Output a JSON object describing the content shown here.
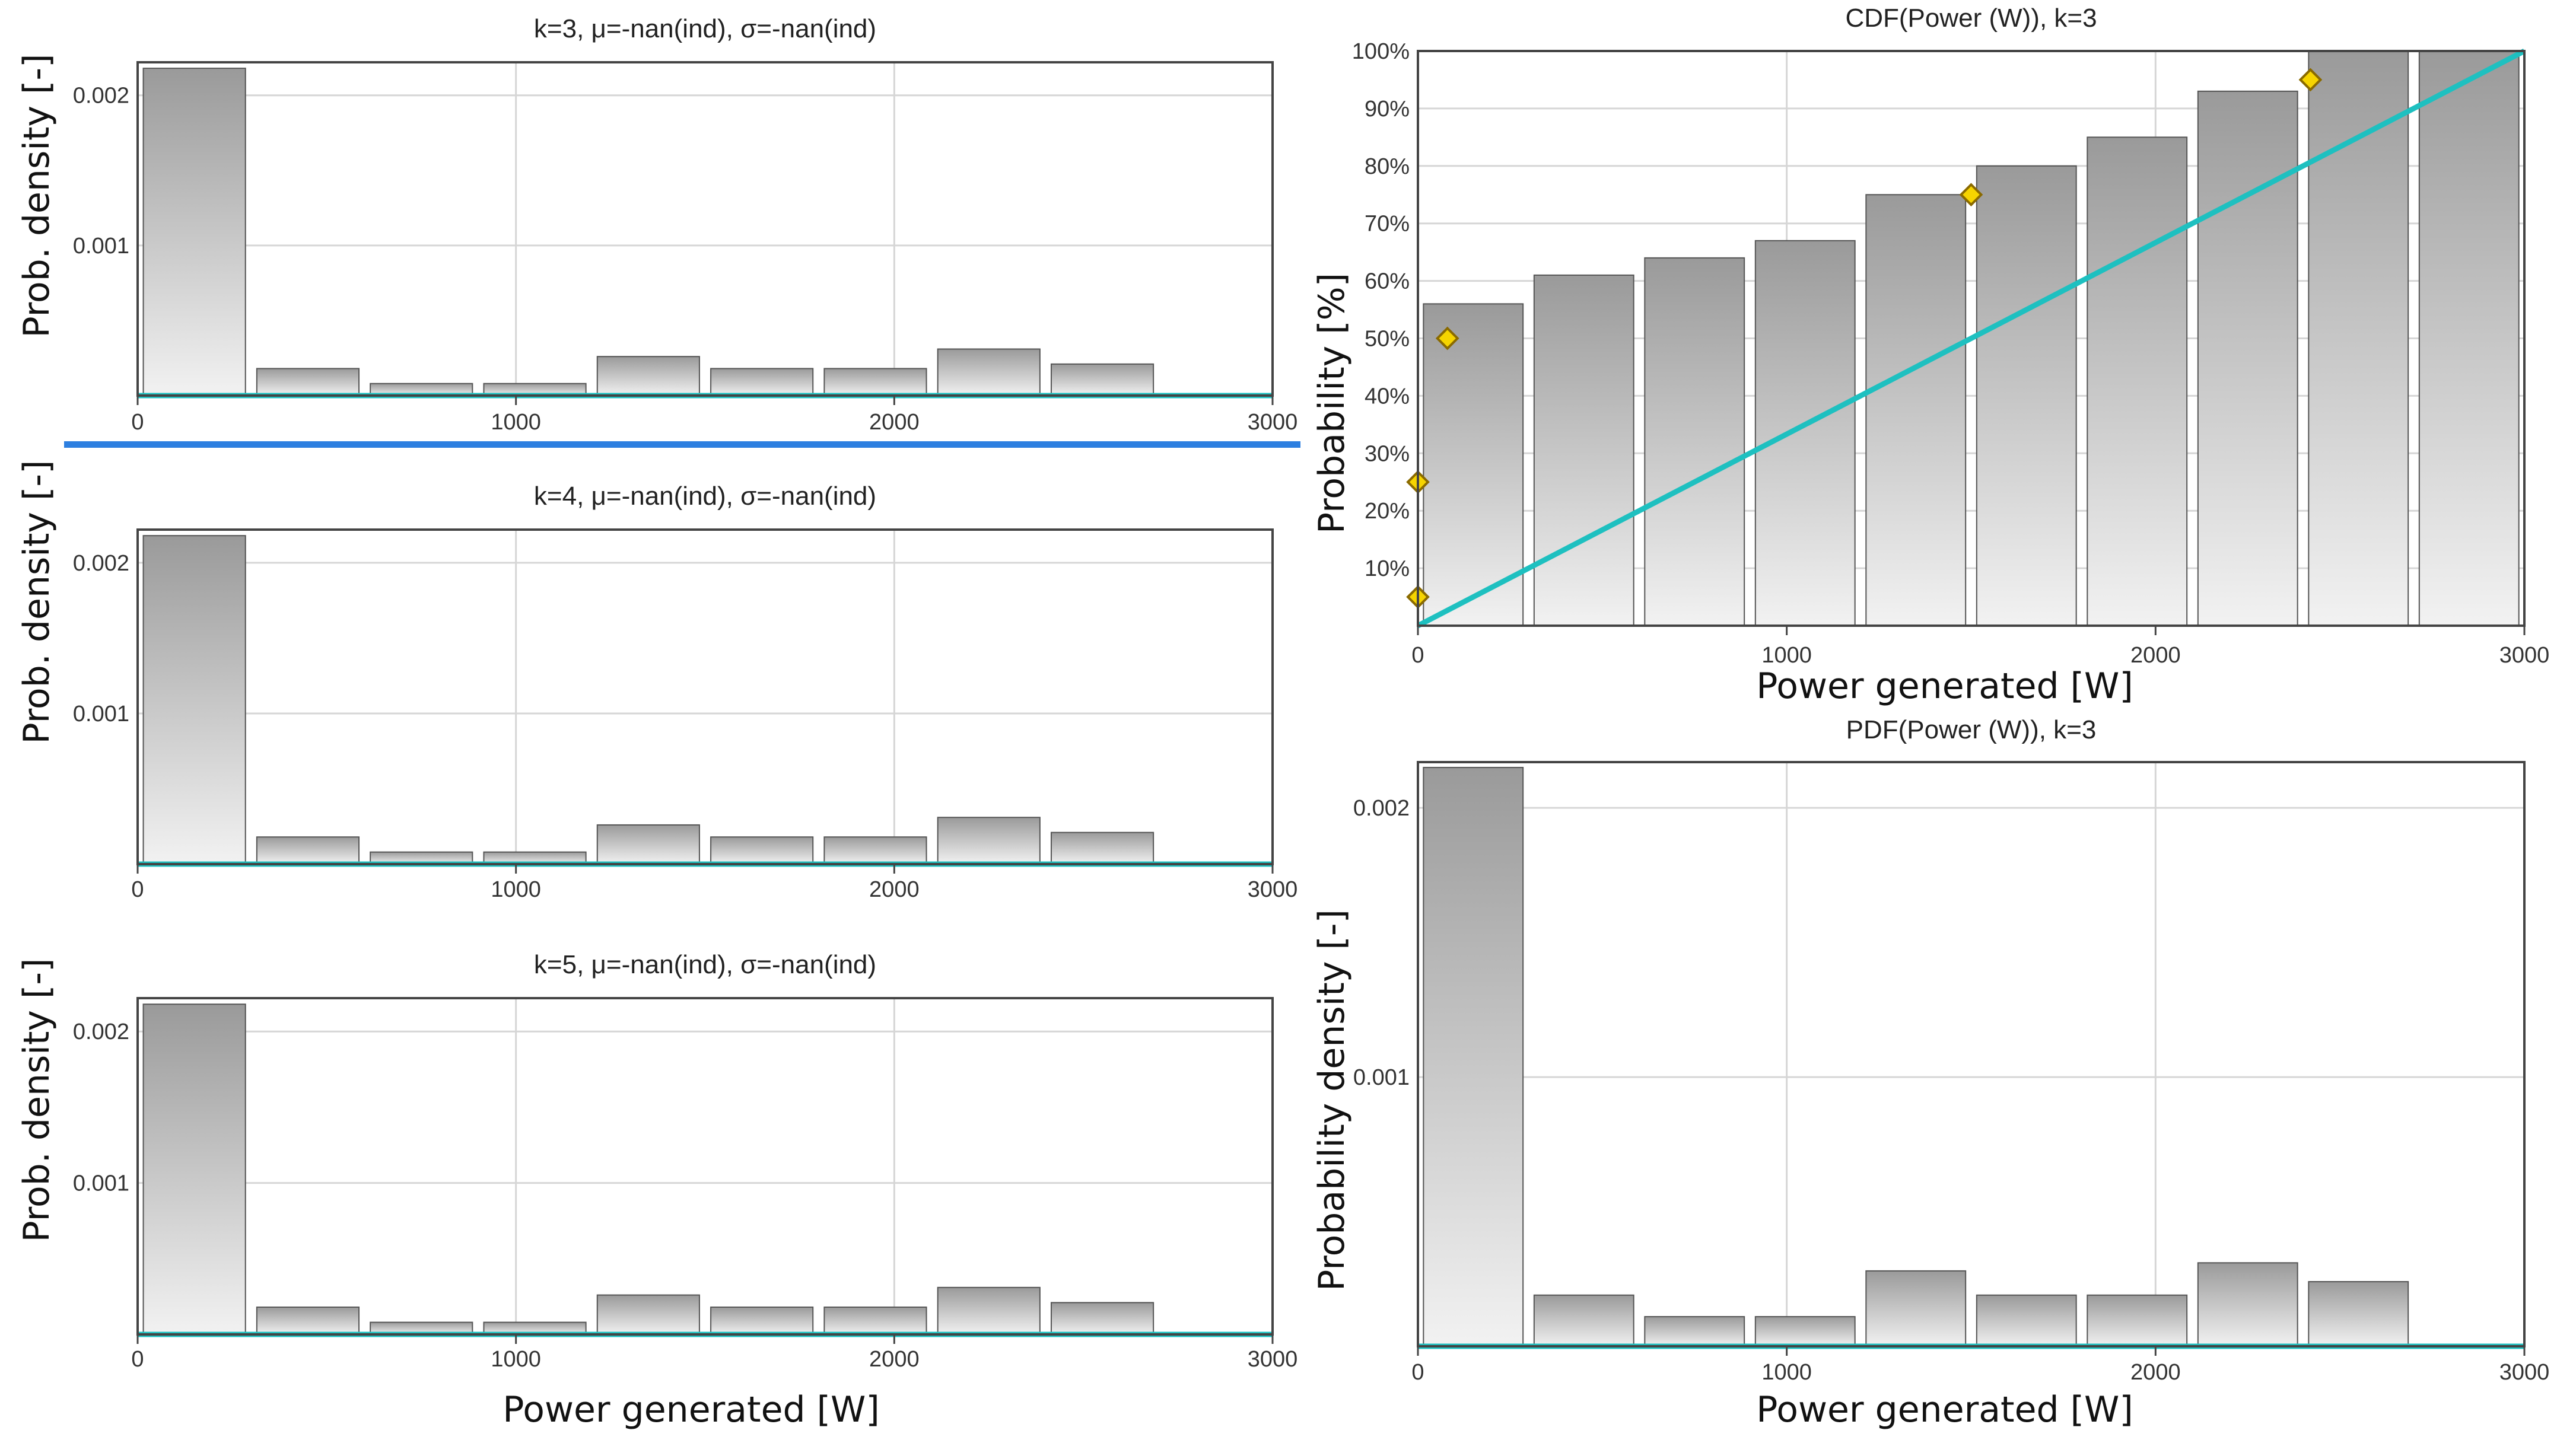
{
  "colors": {
    "bar_dark": "#9a9a9a",
    "bar_light": "#f2f2f2",
    "bar_outline": "#555555",
    "teal": "#1ec0c0",
    "grid": "#d6d6d6",
    "frame": "#444444",
    "marker_fill": "#f6d400",
    "marker_stroke": "#8a6a00",
    "divider": "#2d7fe0"
  },
  "left_panel": {
    "side_label_1": "Prob. density [-]",
    "side_label_2": "Prob. density [-]",
    "side_label_3": "Prob. density [-]",
    "xlabel": "Power generated [W]"
  },
  "right_panel": {
    "cdf_ylabel": "Probability [%]",
    "cdf_xlabel": "Power generated [W]",
    "pdf_ylabel": "Probability density [-]",
    "pdf_xlabel": "Power generated [W]"
  },
  "chart_data": [
    {
      "id": "hist-k3",
      "type": "bar",
      "title": "k=3, μ=-nan(ind), σ=-nan(ind)",
      "xlim": [
        0,
        3000
      ],
      "ylim": [
        0,
        0.00222
      ],
      "xticks": [
        0,
        1000,
        2000,
        3000
      ],
      "yticks": [
        0.001,
        0.002
      ],
      "ytick_labels": [
        "0.001",
        "0.002"
      ],
      "bin_width": 300,
      "bin_starts": [
        0,
        300,
        600,
        900,
        1200,
        1500,
        1800,
        2100,
        2400
      ],
      "values": [
        0.00218,
        0.00018,
        8e-05,
        8e-05,
        0.00026,
        0.00018,
        0.00018,
        0.00031,
        0.00021
      ],
      "legend": "none"
    },
    {
      "id": "hist-k4",
      "type": "bar",
      "title": "k=4, μ=-nan(ind), σ=-nan(ind)",
      "xlim": [
        0,
        3000
      ],
      "ylim": [
        0,
        0.00222
      ],
      "xticks": [
        0,
        1000,
        2000,
        3000
      ],
      "yticks": [
        0.001,
        0.002
      ],
      "ytick_labels": [
        "0.001",
        "0.002"
      ],
      "bin_width": 300,
      "bin_starts": [
        0,
        300,
        600,
        900,
        1200,
        1500,
        1800,
        2100,
        2400
      ],
      "values": [
        0.00218,
        0.00018,
        8e-05,
        8e-05,
        0.00026,
        0.00018,
        0.00018,
        0.00031,
        0.00021
      ],
      "legend": "none"
    },
    {
      "id": "hist-k5",
      "type": "bar",
      "title": "k=5, μ=-nan(ind), σ=-nan(ind)",
      "xlim": [
        0,
        3000
      ],
      "ylim": [
        0,
        0.00222
      ],
      "xticks": [
        0,
        1000,
        2000,
        3000
      ],
      "yticks": [
        0.001,
        0.002
      ],
      "ytick_labels": [
        "0.001",
        "0.002"
      ],
      "bin_width": 300,
      "bin_starts": [
        0,
        300,
        600,
        900,
        1200,
        1500,
        1800,
        2100,
        2400
      ],
      "values": [
        0.00218,
        0.00018,
        8e-05,
        8e-05,
        0.00026,
        0.00018,
        0.00018,
        0.00031,
        0.00021
      ],
      "legend": "none"
    },
    {
      "id": "cdf-k3",
      "type": "bar",
      "title": "CDF(Power (W)), k=3",
      "xlim": [
        0,
        3000
      ],
      "ylim": [
        0,
        100
      ],
      "xticks": [
        0,
        1000,
        2000,
        3000
      ],
      "yticks": [
        10,
        20,
        30,
        40,
        50,
        60,
        70,
        80,
        90,
        100
      ],
      "ytick_labels": [
        "10%",
        "20%",
        "30%",
        "40%",
        "50%",
        "60%",
        "70%",
        "80%",
        "90%",
        "100%"
      ],
      "bin_width": 300,
      "bin_starts": [
        0,
        300,
        600,
        900,
        1200,
        1500,
        1800,
        2100,
        2400,
        2700
      ],
      "values": [
        56,
        61,
        64,
        67,
        75,
        80,
        85,
        93,
        100,
        100
      ],
      "reference_line": {
        "x": [
          0,
          3000
        ],
        "y": [
          0,
          100
        ]
      },
      "markers": [
        {
          "x": 0,
          "y": 5
        },
        {
          "x": 0,
          "y": 25
        },
        {
          "x": 80,
          "y": 50
        },
        {
          "x": 1500,
          "y": 75
        },
        {
          "x": 2420,
          "y": 95
        }
      ],
      "legend": "none"
    },
    {
      "id": "pdf-k3",
      "type": "bar",
      "title": "PDF(Power (W)), k=3",
      "xlim": [
        0,
        3000
      ],
      "ylim": [
        0,
        0.00217
      ],
      "xticks": [
        0,
        1000,
        2000,
        3000
      ],
      "yticks": [
        0.001,
        0.002
      ],
      "ytick_labels": [
        "0.001",
        "0.002"
      ],
      "bin_width": 300,
      "bin_starts": [
        0,
        300,
        600,
        900,
        1200,
        1500,
        1800,
        2100,
        2400
      ],
      "values": [
        0.00215,
        0.00019,
        0.00011,
        0.00011,
        0.00028,
        0.00019,
        0.00019,
        0.00031,
        0.00024
      ],
      "legend": "none"
    }
  ]
}
